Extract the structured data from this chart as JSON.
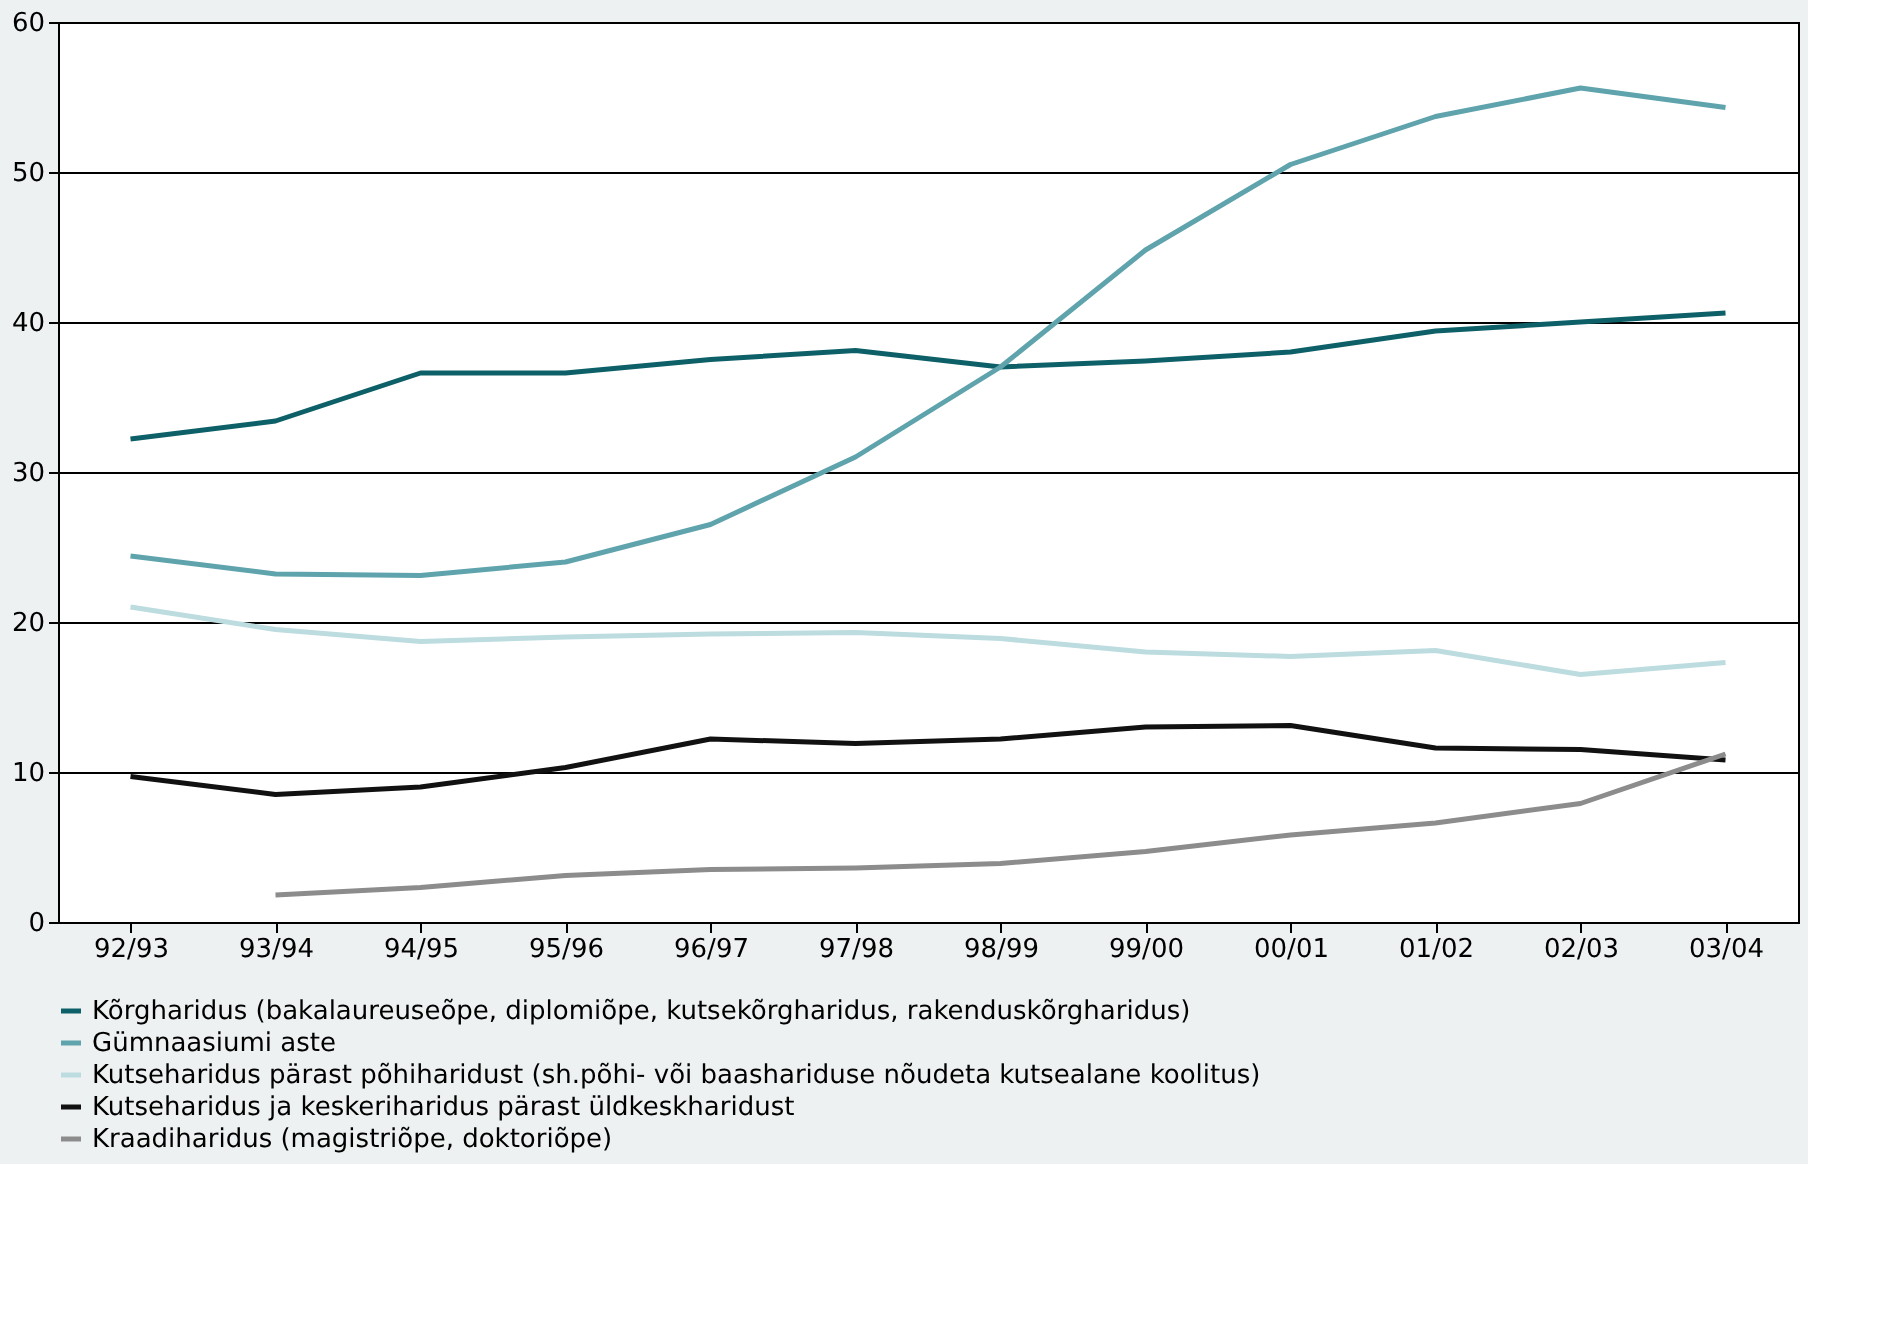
{
  "chart_data": {
    "type": "line",
    "categories": [
      "92/93",
      "93/94",
      "94/95",
      "95/96",
      "96/97",
      "97/98",
      "98/99",
      "99/00",
      "00/01",
      "01/02",
      "02/03",
      "03/04"
    ],
    "ylim": [
      0,
      60
    ],
    "yticks": [
      0,
      10,
      20,
      30,
      40,
      50,
      60
    ],
    "grid": "y",
    "legend": "bottom",
    "line_style": "solid",
    "marker": "none",
    "series": [
      {
        "name": "Kõrgharidus (bakalaureuseõpe, diplomiõpe, kutsekõrgharidus, rakenduskõrgharidus)",
        "color": "#0e6068",
        "values": [
          32.2,
          33.4,
          36.6,
          36.6,
          37.5,
          38.1,
          37.0,
          37.4,
          38.0,
          39.4,
          40.0,
          40.6
        ]
      },
      {
        "name": "Gümnaasiumi aste",
        "color": "#5fa3ad",
        "values": [
          24.4,
          23.2,
          23.1,
          24.0,
          26.5,
          31.0,
          37.0,
          44.8,
          50.5,
          53.7,
          55.6,
          54.3
        ]
      },
      {
        "name": "Kutseharidus pärast põhiharidust (sh.põhi- või baashariduse nõudeta kutsealane koolitus)",
        "color": "#bcdcdf",
        "values": [
          21.0,
          19.5,
          18.7,
          19.0,
          19.2,
          19.3,
          18.9,
          18.0,
          17.7,
          18.1,
          16.5,
          17.3
        ]
      },
      {
        "name": "Kutseharidus ja keskeriharidus pärast üldkeskharidust",
        "color": "#111111",
        "values": [
          9.7,
          8.5,
          9.0,
          10.3,
          12.2,
          11.9,
          12.2,
          13.0,
          13.1,
          11.6,
          11.5,
          10.8
        ]
      },
      {
        "name": "Kraadiharidus (magistriõpe, doktoriõpe)",
        "color": "#8c8c8c",
        "values": [
          null,
          1.8,
          2.3,
          3.1,
          3.5,
          3.6,
          3.9,
          4.7,
          5.8,
          6.6,
          7.9,
          11.2
        ]
      }
    ]
  }
}
